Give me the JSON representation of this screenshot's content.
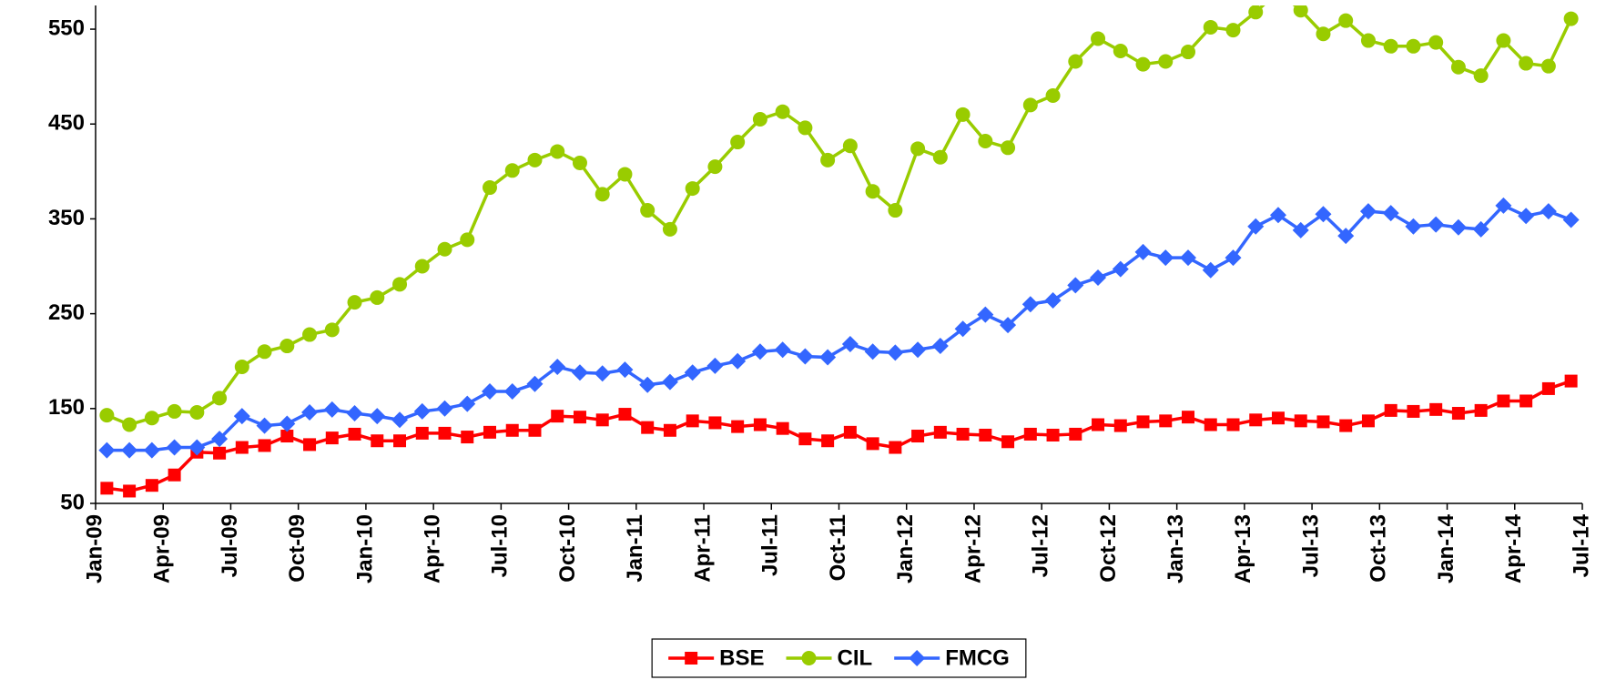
{
  "chart_data": {
    "type": "line",
    "x": [
      "Jan-09",
      "Feb-09",
      "Mar-09",
      "Apr-09",
      "May-09",
      "Jun-09",
      "Jul-09",
      "Aug-09",
      "Sep-09",
      "Oct-09",
      "Nov-09",
      "Dec-09",
      "Jan-10",
      "Feb-10",
      "Mar-10",
      "Apr-10",
      "May-10",
      "Jun-10",
      "Jul-10",
      "Aug-10",
      "Sep-10",
      "Oct-10",
      "Nov-10",
      "Dec-10",
      "Jan-11",
      "Feb-11",
      "Mar-11",
      "Apr-11",
      "May-11",
      "Jun-11",
      "Jul-11",
      "Aug-11",
      "Sep-11",
      "Oct-11",
      "Nov-11",
      "Dec-11",
      "Jan-12",
      "Feb-12",
      "Mar-12",
      "Apr-12",
      "May-12",
      "Jun-12",
      "Jul-12",
      "Aug-12",
      "Sep-12",
      "Oct-12",
      "Nov-12",
      "Dec-12",
      "Jan-13",
      "Feb-13",
      "Mar-13",
      "Apr-13",
      "May-13",
      "Jun-13",
      "Jul-13",
      "Aug-13",
      "Sep-13",
      "Oct-13",
      "Nov-13",
      "Dec-13",
      "Jan-14",
      "Feb-14",
      "Mar-14",
      "Apr-14",
      "May-14",
      "Jun-14"
    ],
    "series": [
      {
        "name": "BSE",
        "color": "#ff0000",
        "marker": "square",
        "values": [
          66,
          63,
          69,
          80,
          104,
          103,
          109,
          111,
          121,
          112,
          119,
          123,
          116,
          116,
          124,
          124,
          120,
          125,
          127,
          127,
          142,
          141,
          138,
          144,
          130,
          127,
          137,
          135,
          131,
          133,
          129,
          118,
          116,
          125,
          113,
          109,
          121,
          125,
          123,
          122,
          115,
          123,
          122,
          123,
          133,
          132,
          136,
          137,
          141,
          133,
          133,
          138,
          140,
          137,
          136,
          132,
          137,
          148,
          147,
          149,
          145,
          148,
          158,
          158,
          171,
          179
        ]
      },
      {
        "name": "CIL",
        "color": "#99cc00",
        "marker": "circle",
        "values": [
          143,
          133,
          140,
          147,
          146,
          161,
          194,
          210,
          216,
          228,
          233,
          262,
          267,
          281,
          300,
          318,
          328,
          383,
          401,
          412,
          421,
          409,
          376,
          397,
          359,
          339,
          382,
          405,
          431,
          455,
          463,
          446,
          412,
          427,
          379,
          359,
          424,
          415,
          460,
          432,
          425,
          470,
          480,
          516,
          540,
          527,
          513,
          516,
          526,
          552,
          549,
          568,
          590,
          570,
          545,
          559,
          538,
          532,
          532,
          536,
          510,
          501,
          538,
          514,
          511,
          561
        ]
      },
      {
        "name": "FMCG",
        "color": "#3366ff",
        "marker": "diamond",
        "values": [
          106,
          106,
          106,
          109,
          109,
          118,
          142,
          132,
          134,
          146,
          149,
          145,
          142,
          138,
          147,
          150,
          155,
          168,
          168,
          176,
          194,
          188,
          187,
          191,
          175,
          178,
          188,
          195,
          200,
          210,
          212,
          205,
          204,
          218,
          210,
          209,
          212,
          216,
          234,
          249,
          238,
          260,
          264,
          280,
          288,
          297,
          315,
          309,
          309,
          296,
          309,
          342,
          354,
          338,
          355,
          332,
          358,
          356,
          342,
          344,
          341,
          339,
          364,
          353,
          358,
          349
        ]
      }
    ],
    "xlim": [
      "Jan-09",
      "Jul-14"
    ],
    "xticks": [
      "Jan-09",
      "Apr-09",
      "Jul-09",
      "Oct-09",
      "Jan-10",
      "Apr-10",
      "Jul-10",
      "Oct-10",
      "Jan-11",
      "Apr-11",
      "Jul-11",
      "Oct-11",
      "Jan-12",
      "Apr-12",
      "Jul-12",
      "Oct-12",
      "Jan-13",
      "Apr-13",
      "Jul-13",
      "Oct-13",
      "Jan-14",
      "Apr-14",
      "Jul-14"
    ],
    "ylim": [
      50,
      575
    ],
    "yticks": [
      50,
      150,
      250,
      350,
      450,
      550
    ],
    "grid": false,
    "legend": "bottom"
  }
}
